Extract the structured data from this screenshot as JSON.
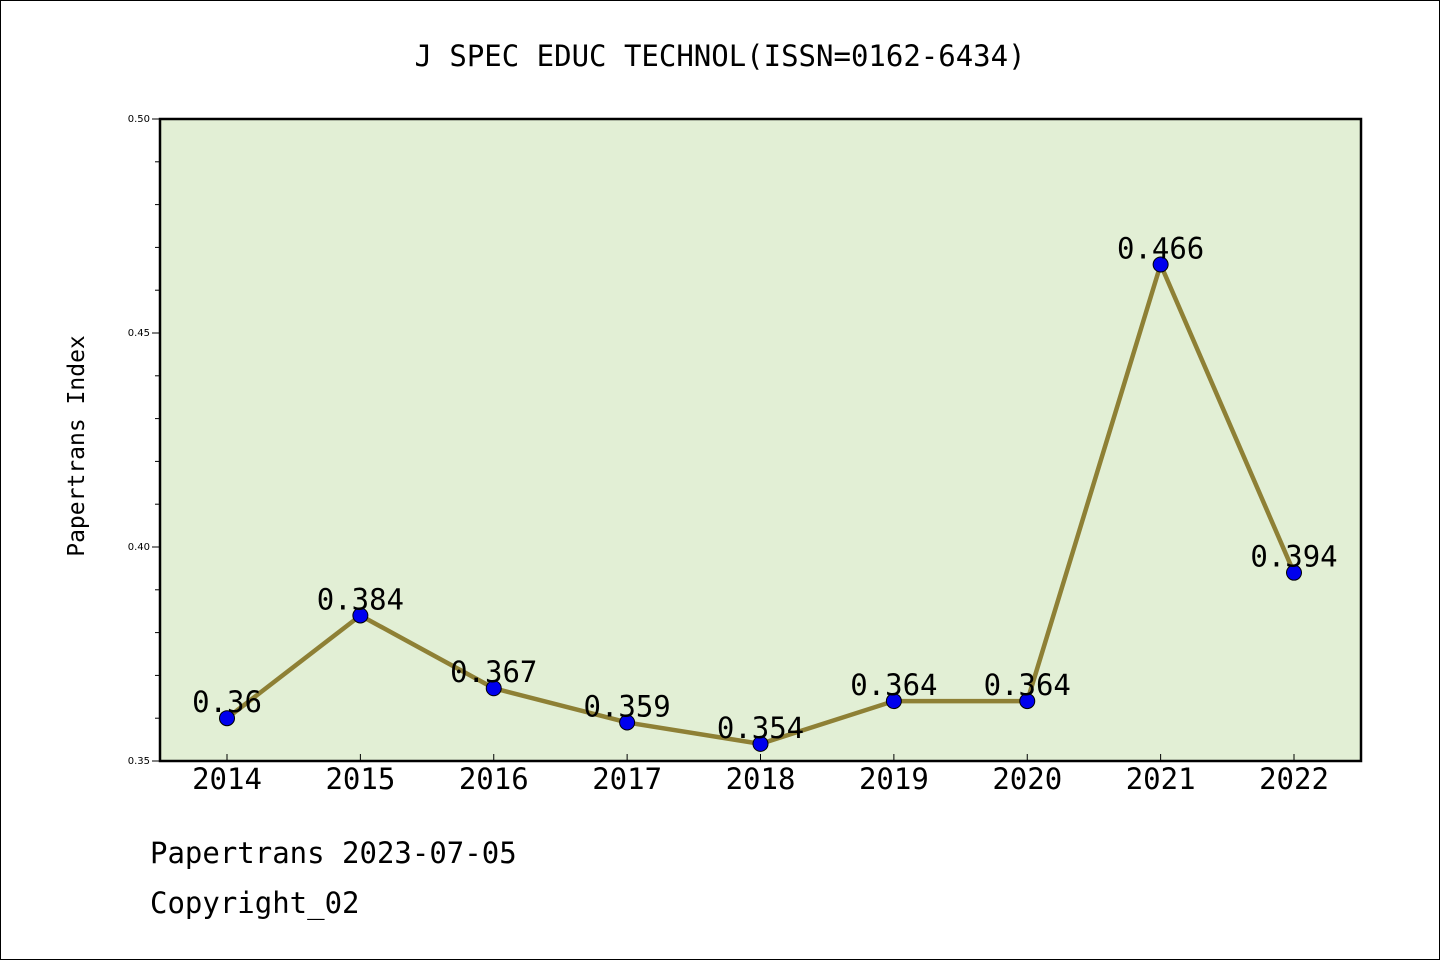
{
  "chart_data": {
    "type": "line",
    "title": "J SPEC EDUC TECHNOL(ISSN=0162-6434)",
    "xlabel": "",
    "ylabel": "Papertrans Index",
    "categories": [
      "2014",
      "2015",
      "2016",
      "2017",
      "2018",
      "2019",
      "2020",
      "2021",
      "2022"
    ],
    "series": [
      {
        "values": [
          0.36,
          0.384,
          0.367,
          0.359,
          0.354,
          0.364,
          0.364,
          0.466,
          0.394
        ],
        "labels": [
          "0.36",
          "0.384",
          "0.367",
          "0.359",
          "0.354",
          "0.364",
          "0.364",
          "0.466",
          "0.394"
        ]
      }
    ],
    "ylim": [
      0.35,
      0.5
    ],
    "yticks": [
      "0.35",
      "0.40",
      "0.45",
      "0.50"
    ],
    "grid": false,
    "colors": {
      "plot_background": "#e2efd5",
      "line": "#8e8035",
      "marker": "#0000ee"
    }
  },
  "footer": {
    "date_text": "Papertrans 2023-07-05",
    "copyright_text": "Copyright_02"
  }
}
